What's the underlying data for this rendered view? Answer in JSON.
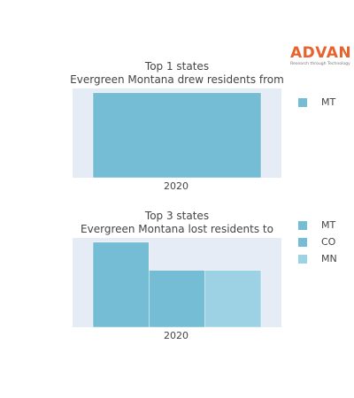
{
  "logo": {
    "text": "ADVAN",
    "tagline": "Research through Technology",
    "color": "#e8622c"
  },
  "chart_data": [
    {
      "type": "bar",
      "title_line1": "Top 1 states",
      "title_line2": "Evergreen Montana drew residents from",
      "categories": [
        "2020"
      ],
      "series": [
        {
          "name": "MT",
          "values": [
            1.0
          ],
          "color": "#75bcd5"
        }
      ],
      "legend": "right",
      "grid": false,
      "background": "#e5ecf6"
    },
    {
      "type": "bar",
      "title_line1": "Top 3 states",
      "title_line2": "Evergreen Montana lost residents to",
      "categories": [
        "2020"
      ],
      "series": [
        {
          "name": "MT",
          "values": [
            1.0
          ],
          "color": "#75bcd5"
        },
        {
          "name": "CO",
          "values": [
            0.67
          ],
          "color": "#75bcd5"
        },
        {
          "name": "MN",
          "values": [
            0.67
          ],
          "color": "#9dd2e5"
        }
      ],
      "legend": "right",
      "grid": false,
      "background": "#e5ecf6"
    }
  ]
}
